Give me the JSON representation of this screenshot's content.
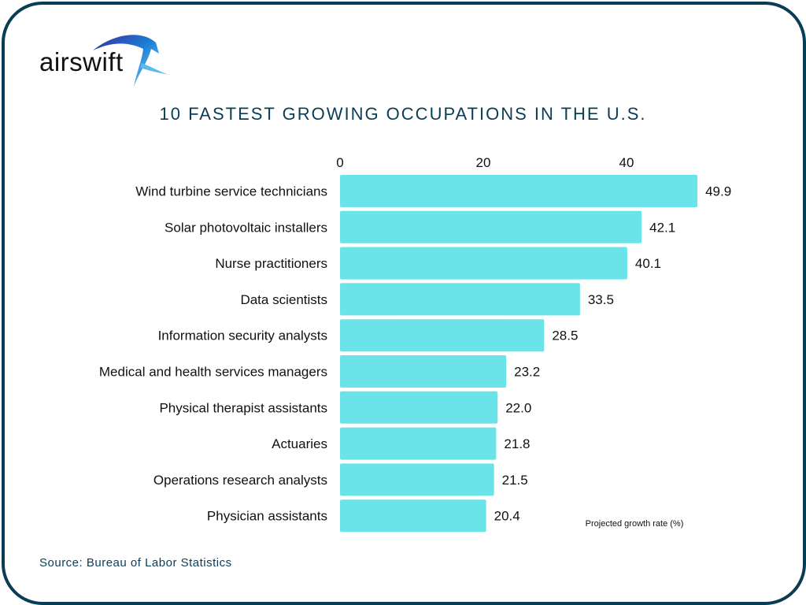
{
  "brand": {
    "name": "airswift",
    "border_color": "#0b3c55"
  },
  "chart_data": {
    "type": "bar",
    "orientation": "horizontal",
    "title": "10 FASTEST GROWING OCCUPATIONS IN THE U.S.",
    "xlabel": "Projected growth rate (%)",
    "ylabel": "",
    "xlim": [
      0,
      50
    ],
    "xticks": [
      0,
      20,
      40
    ],
    "xaxis_position": "top",
    "grid": false,
    "bar_color": "#6ae4e8",
    "categories": [
      "Wind turbine service technicians",
      "Solar photovoltaic installers",
      "Nurse practitioners",
      "Data scientists",
      "Information security analysts",
      "Medical and health services managers",
      "Physical therapist assistants",
      "Actuaries",
      "Operations research analysts",
      "Physician assistants"
    ],
    "values": [
      49.9,
      42.1,
      40.1,
      33.5,
      28.5,
      23.2,
      22.0,
      21.8,
      21.5,
      20.4
    ],
    "value_labels": [
      "49.9",
      "42.1",
      "40.1",
      "33.5",
      "28.5",
      "23.2",
      "22.0",
      "21.8",
      "21.5",
      "20.4"
    ]
  },
  "source": "Source: Bureau of Labor Statistics"
}
